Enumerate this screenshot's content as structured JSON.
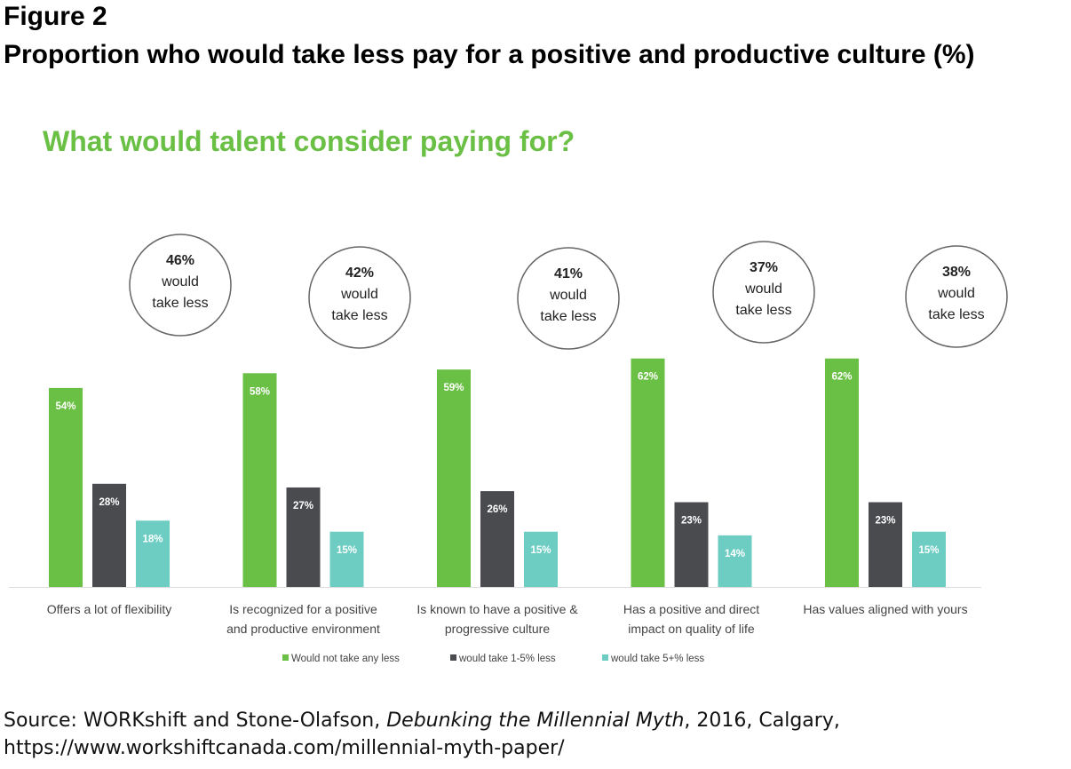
{
  "figure_label": "Figure 2",
  "figure_title": "Proportion who would take less pay for a positive and productive culture (%)",
  "source": {
    "prefix": "Source: WORKshift and Stone-Olafson, ",
    "italic": "Debunking the Millennial Myth",
    "suffix": ", 2016, Calgary,",
    "url": "https://www.workshiftcanada.com/millennial-myth-paper/"
  },
  "colors": {
    "green": "#6abf45",
    "dark": "#4a4b4f",
    "teal": "#6dcdc3",
    "title_green": "#6abf45"
  },
  "chart_data": {
    "type": "bar",
    "title": "What would talent consider paying for?",
    "categories": [
      [
        "Offers a lot of flexibility"
      ],
      [
        "Is recognized for a positive",
        "and productive environment"
      ],
      [
        "Is known to have a positive &",
        "progressive culture"
      ],
      [
        "Has a positive and direct",
        "impact on quality of life"
      ],
      [
        "Has values aligned with yours"
      ]
    ],
    "series": [
      {
        "name": "Would not take any less",
        "values": [
          54,
          58,
          59,
          62,
          62
        ],
        "labels": [
          "54%",
          "58%",
          "59%",
          "62%",
          "62%"
        ]
      },
      {
        "name": "would take 1-5% less",
        "values": [
          28,
          27,
          26,
          23,
          23
        ],
        "labels": [
          "28%",
          "27%",
          "26%",
          "23%",
          "23%"
        ]
      },
      {
        "name": "would take 5+% less",
        "values": [
          18,
          15,
          15,
          14,
          15
        ],
        "labels": [
          "18%",
          "15%",
          "15%",
          "14%",
          "15%"
        ]
      }
    ],
    "callouts": [
      [
        "46%",
        "would",
        "take less"
      ],
      [
        "42%",
        "would",
        "take less"
      ],
      [
        "41%",
        "would",
        "take less"
      ],
      [
        "37%",
        "would",
        "take less"
      ],
      [
        "38%",
        "would",
        "take less"
      ]
    ],
    "ylim": [
      0,
      62
    ],
    "grid": false,
    "legend_position": "bottom"
  }
}
